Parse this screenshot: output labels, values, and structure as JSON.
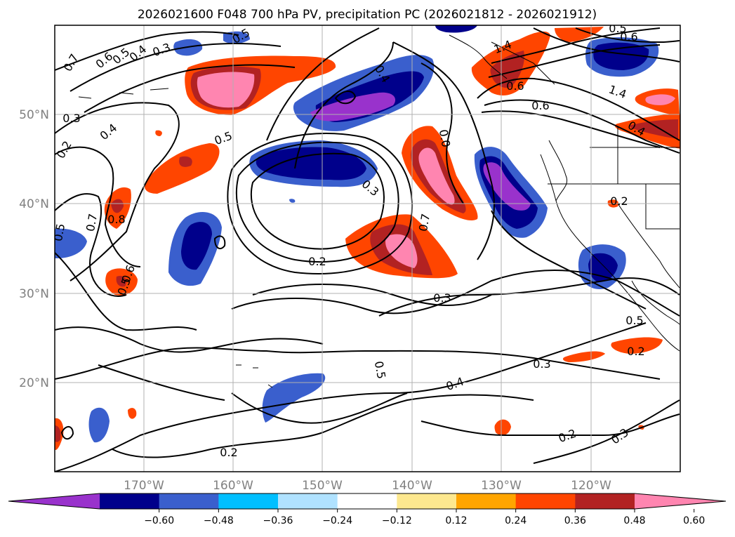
{
  "title": "2026021600 F048 700 hPa PV, precipitation PC (2026021812 - 2026021912)",
  "map": {
    "lon_range": [
      -180,
      -110
    ],
    "lat_range": [
      10,
      60
    ],
    "lon_tick_labels": [
      "170°W",
      "160°W",
      "150°W",
      "140°W",
      "130°W",
      "120°W"
    ],
    "lat_tick_labels": [
      "20°N",
      "30°N",
      "40°N",
      "50°N"
    ],
    "grid": true,
    "grid_color": "#b0b0b0",
    "tick_label_color": "#808080"
  },
  "contour_labels": [
    "0.7",
    "0.6",
    "0.5",
    "0.4",
    "0.3",
    "0.3",
    "0.4",
    "0.2",
    "0.5",
    "0.5",
    "0.7",
    "0.8",
    "0.6",
    "0.5",
    "0.5",
    "0.3",
    "0.2",
    "0.3",
    "0.0",
    "0.7",
    "0.4",
    "1.4",
    "0.6",
    "0.6",
    "0.5",
    "0.6",
    "1.4",
    "0.4",
    "0.2",
    "0.5",
    "0.2",
    "0.3",
    "0.5",
    "0.4",
    "0.2",
    "0.2",
    "0.3"
  ],
  "colorbar": {
    "colors": [
      "#9932cc",
      "#00008b",
      "#3a5fcd",
      "#00bfff",
      "#b0e2ff",
      "#ffffff",
      "#fde88f",
      "#ffa500",
      "#ff4500",
      "#b22222",
      "#ff85b0"
    ],
    "tick_labels": [
      "−0.60",
      "−0.48",
      "−0.36",
      "−0.24",
      "−0.12",
      "0.12",
      "0.24",
      "0.36",
      "0.48",
      "0.60"
    ],
    "extend": "both"
  }
}
